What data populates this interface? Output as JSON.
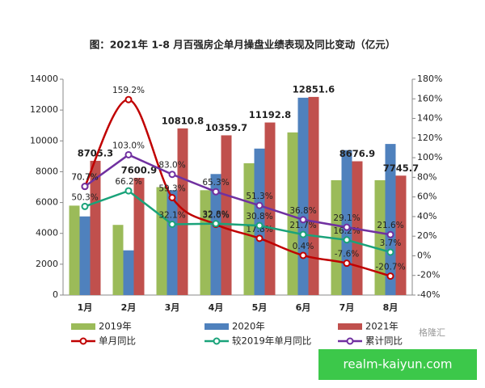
{
  "chart_data": {
    "type": "bar-line",
    "title": "图：2021年 1-8 月百强房企单月操盘业绩表现及同比变动（亿元）",
    "categories": [
      "1月",
      "2月",
      "3月",
      "4月",
      "5月",
      "6月",
      "7月",
      "8月"
    ],
    "ylim": [
      0,
      14000
    ],
    "yticks": [
      0,
      2000,
      4000,
      6000,
      8000,
      10000,
      12000,
      14000
    ],
    "y2lim": [
      -40,
      180
    ],
    "y2ticks": [
      {
        "value": -40,
        "label": "-40%"
      },
      {
        "value": -20,
        "label": "-20%"
      },
      {
        "value": 0,
        "label": "0%"
      },
      {
        "value": 20,
        "label": "20%"
      },
      {
        "value": 40,
        "label": "40%"
      },
      {
        "value": 60,
        "label": "60%"
      },
      {
        "value": 80,
        "label": "80%"
      },
      {
        "value": 100,
        "label": "100%"
      },
      {
        "value": 120,
        "label": "120%"
      },
      {
        "value": 140,
        "label": "140%"
      },
      {
        "value": 160,
        "label": "160%"
      },
      {
        "value": 180,
        "label": "180%"
      }
    ],
    "series": [
      {
        "name": "2019年",
        "type": "bar",
        "color": "#9bbb59",
        "values": [
          5800,
          4550,
          7000,
          6800,
          8550,
          10550,
          7450,
          7450
        ]
      },
      {
        "name": "2020年",
        "type": "bar",
        "color": "#4f81bd",
        "values": [
          5100,
          2900,
          6800,
          7850,
          9500,
          12800,
          9400,
          9800
        ]
      },
      {
        "name": "2021年",
        "type": "bar",
        "color": "#c0504d",
        "data_labels": true,
        "values": [
          8705.3,
          7600.9,
          10810.8,
          10359.7,
          11192.8,
          12851.6,
          8676.9,
          7745.7
        ]
      },
      {
        "name": "单月同比",
        "type": "line",
        "axis": "y2",
        "smooth": true,
        "color": "#c00000",
        "values": [
          70.7,
          159.2,
          59.3,
          32.0,
          17.8,
          0.4,
          -7.6,
          -20.7
        ],
        "value_labels": [
          "70.7%",
          "159.2%",
          "59.3%",
          "32.0%",
          "17.8%",
          "0.4%",
          "-7.6%",
          "-20.7%"
        ]
      },
      {
        "name": "较2019年单月同比",
        "type": "line",
        "axis": "y2",
        "color": "#1aa37a",
        "values": [
          50.3,
          66.2,
          32.1,
          32.8,
          30.8,
          21.7,
          16.2,
          3.7
        ],
        "value_labels": [
          "50.3%",
          "66.2%",
          "32.1%",
          "32.8%",
          "30.8%",
          "21.7%",
          "16.2%",
          "3.7%"
        ]
      },
      {
        "name": "累计同比",
        "type": "line",
        "axis": "y2",
        "color": "#7030a0",
        "values": [
          70.7,
          103.0,
          83.0,
          65.3,
          51.3,
          36.8,
          29.1,
          21.6
        ],
        "value_labels": [
          "70.7%",
          "103.0%",
          "83.0%",
          "65.3%",
          "51.3%",
          "36.8%",
          "29.1%",
          "21.6%"
        ]
      }
    ]
  },
  "overlay": {
    "logo": "格隆汇",
    "site": "realm-kaiyun.com"
  }
}
